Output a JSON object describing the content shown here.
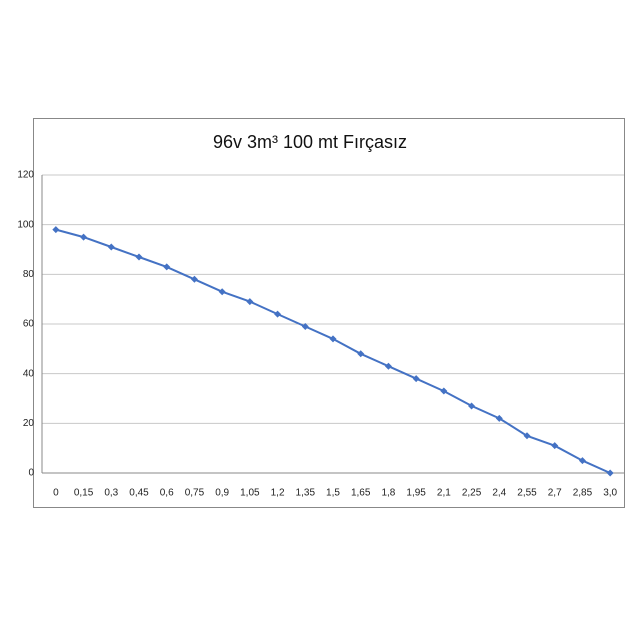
{
  "chart_data": {
    "type": "line",
    "title": "96v 3m³ 100 mt Fırçasız",
    "categories": [
      "0",
      "0,15",
      "0,3",
      "0,45",
      "0,6",
      "0,75",
      "0,9",
      "1,05",
      "1,2",
      "1,35",
      "1,5",
      "1,65",
      "1,8",
      "1,95",
      "2,1",
      "2,25",
      "2,4",
      "2,55",
      "2,7",
      "2,85",
      "3,0"
    ],
    "values": [
      98,
      95,
      91,
      87,
      83,
      78,
      73,
      69,
      64,
      59,
      54,
      48,
      43,
      38,
      33,
      27,
      22,
      15,
      11,
      5,
      0
    ],
    "color": "#4472c4",
    "ylim": [
      0,
      120
    ],
    "yticks": [
      0,
      20,
      40,
      60,
      80,
      100,
      120
    ],
    "grid": true
  }
}
